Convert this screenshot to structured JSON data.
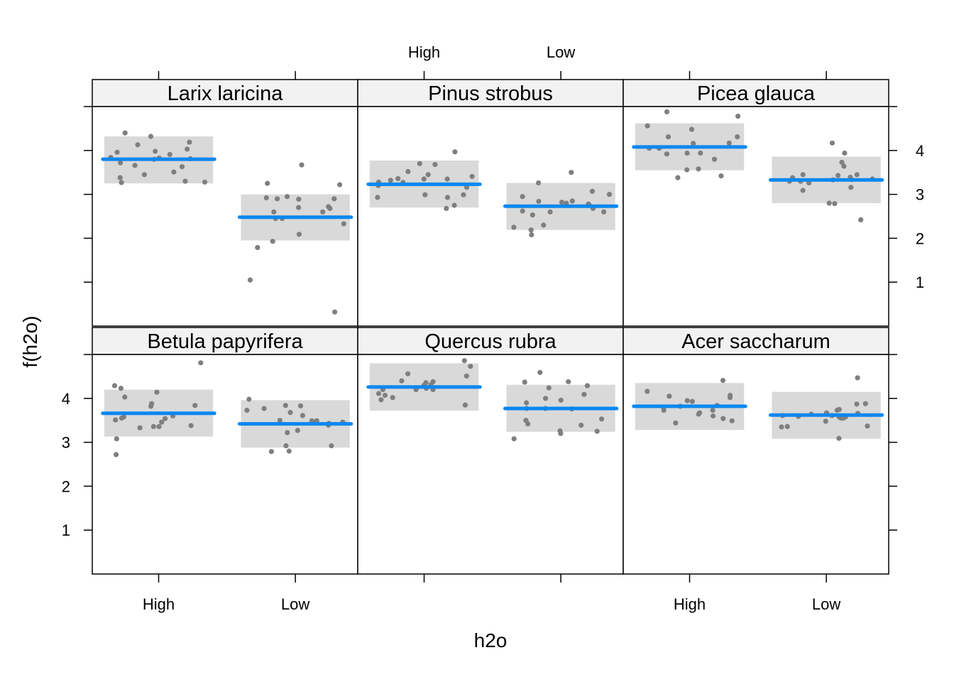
{
  "chart_data": {
    "type": "scatter",
    "layout": "lattice panels, 3 columns x 2 rows",
    "xlabel": "h2o",
    "ylabel": "f(h2o)",
    "x_categories": [
      "High",
      "Low"
    ],
    "ylim": [
      0,
      5
    ],
    "y_ticks": [
      1,
      2,
      3,
      4
    ],
    "y_tick_labels": [
      "1",
      "2",
      "3",
      "4"
    ],
    "grid": false,
    "colors": {
      "fit_line": "#0a88f0",
      "confidence_band": "#d9d9d9",
      "points": "#7f7f7f",
      "strip_background": "#f2f2f2"
    },
    "panels": [
      {
        "name": "Larix laricina",
        "groups": [
          {
            "level": "High",
            "fit": 3.8,
            "lower": 3.25,
            "upper": 4.32,
            "points": [
              3.63,
              3.96,
              4.32,
              3.81,
              4.4,
              4.19,
              3.72,
              3.28,
              4.13,
              3.3,
              3.84,
              3.66,
              3.51,
              3.83,
              3.38,
              3.45,
              3.91,
              3.8,
              3.98,
              3.27,
              4.03
            ]
          },
          {
            "level": "Low",
            "fit": 2.48,
            "lower": 1.95,
            "upper": 3.0,
            "points": [
              3.67,
              2.45,
              2.45,
              2.09,
              1.79,
              1.05,
              0.32,
              2.92,
              2.95,
              2.33,
              3.25,
              2.7,
              3.22,
              2.9,
              1.93,
              2.89,
              2.72,
              2.9,
              2.68,
              2.6,
              2.6
            ]
          }
        ]
      },
      {
        "name": "Pinus strobus",
        "groups": [
          {
            "level": "High",
            "fit": 3.23,
            "lower": 2.7,
            "upper": 3.77,
            "points": [
              3.7,
              3.52,
              2.99,
              3.28,
              2.75,
              2.93,
              3.45,
              3.36,
              2.99,
              3.97,
              2.68,
              3.41,
              3.35,
              3.35,
              3.32,
              3.68,
              3.16,
              3.27,
              2.93,
              3.2
            ]
          },
          {
            "level": "Low",
            "fit": 2.73,
            "lower": 2.19,
            "upper": 3.26,
            "points": [
              2.84,
              2.6,
              2.85,
              2.95,
              2.08,
              3.07,
              2.76,
              2.25,
              2.62,
              3.26,
              2.68,
              2.53,
              2.6,
              3.5,
              2.82,
              2.3,
              3.0,
              2.8,
              2.19,
              2.78
            ]
          }
        ]
      },
      {
        "name": "Picea glauca",
        "groups": [
          {
            "level": "High",
            "fit": 4.08,
            "lower": 3.55,
            "upper": 4.62,
            "points": [
              3.42,
              4.16,
              4.17,
              4.88,
              4.05,
              4.05,
              3.38,
              4.56,
              3.58,
              3.92,
              4.31,
              4.31,
              3.56,
              3.94,
              3.8,
              4.48,
              4.78,
              3.94
            ]
          },
          {
            "level": "Low",
            "fit": 3.33,
            "lower": 2.8,
            "upper": 3.86,
            "points": [
              3.16,
              3.33,
              3.94,
              3.35,
              3.64,
              3.09,
              3.39,
              2.79,
              3.26,
              3.34,
              2.8,
              3.45,
              3.3,
              4.17,
              3.43,
              3.73,
              3.45,
              3.38,
              2.42,
              3.3
            ]
          }
        ]
      },
      {
        "name": "Betula papyrifera",
        "groups": [
          {
            "level": "High",
            "fit": 3.66,
            "lower": 3.13,
            "upper": 4.2,
            "points": [
              3.36,
              3.54,
              3.55,
              3.88,
              4.81,
              3.58,
              3.51,
              3.84,
              3.46,
              3.36,
              3.6,
              4.29,
              4.23,
              4.03,
              2.72,
              4.14,
              3.38,
              3.08,
              3.33,
              3.82
            ]
          },
          {
            "level": "Low",
            "fit": 3.42,
            "lower": 2.88,
            "upper": 3.96,
            "points": [
              3.27,
              3.61,
              3.43,
              3.73,
              3.46,
              3.49,
              3.39,
              3.83,
              3.84,
              3.49,
              3.46,
              2.92,
              2.8,
              3.22,
              3.98,
              3.5,
              3.77,
              3.68,
              2.92,
              2.79
            ]
          }
        ]
      },
      {
        "name": "Quercus rubra",
        "groups": [
          {
            "level": "High",
            "fit": 4.26,
            "lower": 3.72,
            "upper": 4.8,
            "points": [
              4.23,
              4.31,
              3.97,
              4.3,
              4.73,
              4.2,
              4.51,
              4.2,
              4.56,
              4.11,
              4.38,
              4.02,
              4.07,
              4.4,
              4.36,
              4.86,
              4.2,
              3.85
            ]
          },
          {
            "level": "Low",
            "fit": 3.77,
            "lower": 3.24,
            "upper": 4.31,
            "points": [
              3.08,
              4.24,
              4.59,
              4.38,
              3.25,
              4.09,
              3.9,
              3.76,
              4.29,
              3.77,
              3.96,
              3.5,
              3.42,
              3.26,
              3.77,
              4.0,
              3.53,
              3.39,
              3.2,
              4.37
            ]
          }
        ]
      },
      {
        "name": "Acer saccharum",
        "groups": [
          {
            "level": "High",
            "fit": 3.82,
            "lower": 3.28,
            "upper": 4.35,
            "points": [
              3.64,
              4.07,
              3.6,
              3.73,
              3.93,
              3.54,
              4.02,
              3.79,
              4.05,
              4.41,
              3.44,
              3.84,
              4.16,
              3.49,
              3.67,
              3.73,
              3.95,
              3.82
            ]
          },
          {
            "level": "Low",
            "fit": 3.62,
            "lower": 3.08,
            "upper": 4.15,
            "points": [
              3.73,
              3.87,
              3.75,
              3.58,
              3.37,
              3.58,
              3.36,
              3.48,
              3.66,
              3.55,
              4.47,
              3.61,
              3.59,
              3.35,
              3.09,
              3.64,
              3.61,
              3.67,
              3.88,
              3.55
            ]
          }
        ]
      }
    ]
  }
}
